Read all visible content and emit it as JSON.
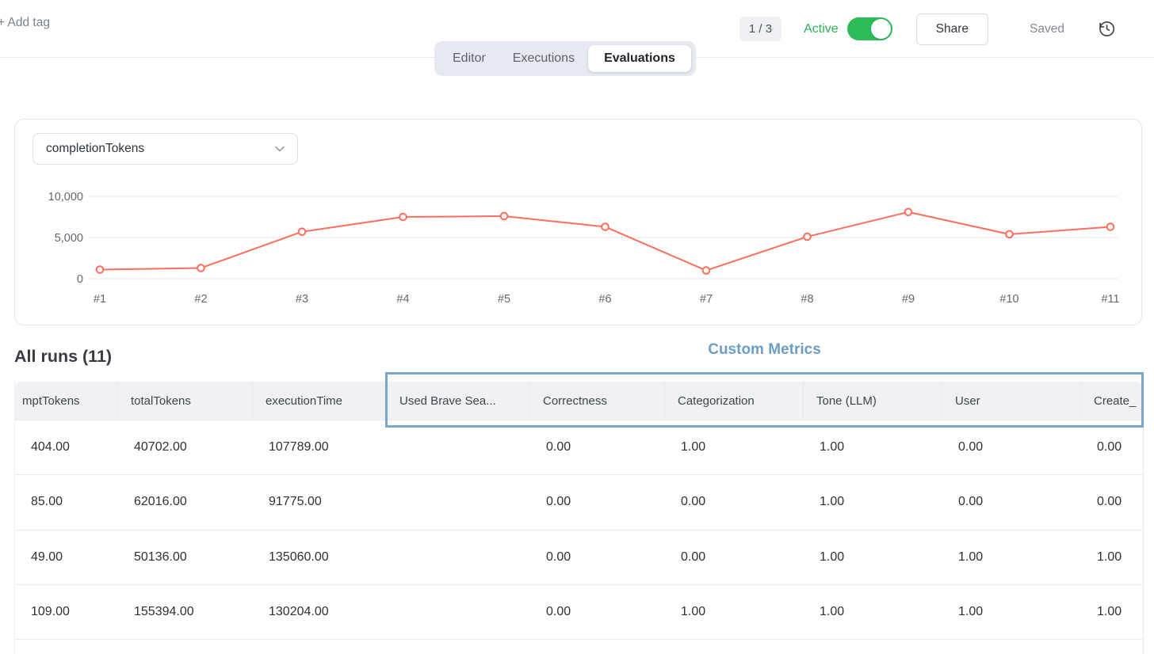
{
  "topbar": {
    "add_tag_label": "+ Add tag",
    "page_indicator": "1 / 3",
    "active_label": "Active",
    "active_state": "on",
    "share_label": "Share",
    "saved_label": "Saved",
    "history_icon": "clock-history-icon"
  },
  "tabs": [
    {
      "label": "Editor",
      "active": false
    },
    {
      "label": "Executions",
      "active": false
    },
    {
      "label": "Evaluations",
      "active": true
    }
  ],
  "chart_panel": {
    "metric_dropdown_value": "completionTokens",
    "dropdown_icon": "chevron-down-icon"
  },
  "chart_data": {
    "type": "line",
    "title": "",
    "xlabel": "",
    "ylabel": "",
    "x": [
      "#1",
      "#2",
      "#3",
      "#4",
      "#5",
      "#6",
      "#7",
      "#8",
      "#9",
      "#10",
      "#11"
    ],
    "series": [
      {
        "name": "completionTokens",
        "values": [
          1100,
          1300,
          5700,
          7500,
          7600,
          6300,
          1000,
          5100,
          8100,
          5400,
          6300
        ]
      }
    ],
    "ylim": [
      0,
      10000
    ],
    "yticks": [
      {
        "value": 0,
        "label": "0"
      },
      {
        "value": 5000,
        "label": "5,000"
      },
      {
        "value": 10000,
        "label": "10,000"
      }
    ],
    "grid": "horizontal",
    "legend": "none",
    "line_color": "#ff6d5c",
    "marker": "open-circle"
  },
  "runs_section": {
    "title": "All runs (11)",
    "custom_metrics_label": "Custom Metrics",
    "columns": [
      "mptTokens",
      "totalTokens",
      "executionTime",
      "Used Brave Sea...",
      "Correctness",
      "Categorization",
      "Tone (LLM)",
      "User",
      "Create_"
    ],
    "rows": [
      [
        "404.00",
        "40702.00",
        "107789.00",
        "",
        "0.00",
        "1.00",
        "1.00",
        "0.00",
        "0.00"
      ],
      [
        "85.00",
        "62016.00",
        "91775.00",
        "",
        "0.00",
        "0.00",
        "1.00",
        "0.00",
        "0.00"
      ],
      [
        "49.00",
        "50136.00",
        "135060.00",
        "",
        "0.00",
        "0.00",
        "1.00",
        "1.00",
        "1.00"
      ],
      [
        "109.00",
        "155394.00",
        "130204.00",
        "",
        "0.00",
        "1.00",
        "1.00",
        "1.00",
        "1.00"
      ]
    ]
  },
  "colors": {
    "accent_green": "#2bbc58",
    "line_red": "#ff6d5c",
    "metrics_blue": "#7ba6ca"
  }
}
